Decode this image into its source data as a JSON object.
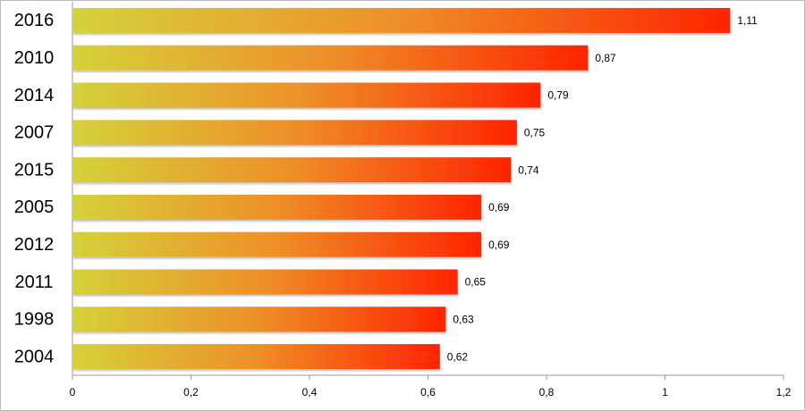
{
  "chart_data": {
    "type": "bar",
    "orientation": "horizontal",
    "categories": [
      "2016",
      "2010",
      "2014",
      "2007",
      "2015",
      "2005",
      "2012",
      "2011",
      "1998",
      "2004"
    ],
    "values": [
      1.11,
      0.87,
      0.79,
      0.75,
      0.74,
      0.69,
      0.69,
      0.65,
      0.63,
      0.62
    ],
    "value_labels": [
      "1,11",
      "0,87",
      "0,79",
      "0,75",
      "0,74",
      "0,69",
      "0,69",
      "0,65",
      "0,63",
      "0,62"
    ],
    "gradient": [
      "#d5d23a",
      "#ee8f28",
      "#ff2400"
    ],
    "xlim": [
      0,
      1.2
    ],
    "xticks": [
      0,
      {
        "value": 0.2,
        "label": "0,2"
      },
      {
        "value": 0.4,
        "label": "0,4"
      },
      {
        "value": 0.6,
        "label": "0,6"
      },
      {
        "value": 0.8,
        "label": "0,8"
      },
      1,
      {
        "value": 1.2,
        "label": "1,2"
      }
    ],
    "grid": false
  }
}
